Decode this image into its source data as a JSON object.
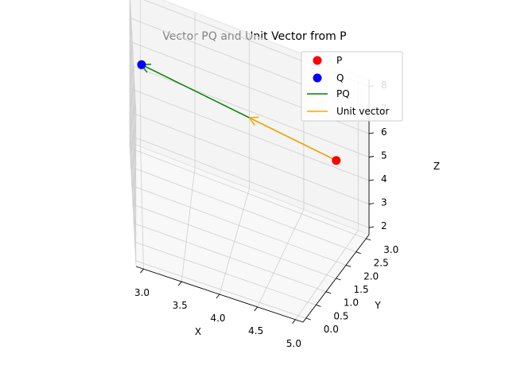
{
  "chart_data": {
    "type": "scatter",
    "projection": "3d",
    "title": "Vector PQ and Unit Vector from P",
    "xlabel": "X",
    "ylabel": "Y",
    "zlabel": "Z",
    "x_ticks": [
      "3.0",
      "3.5",
      "4.0",
      "4.5",
      "5.0"
    ],
    "y_ticks": [
      "0.0",
      "0.5",
      "1.0",
      "1.5",
      "2.0",
      "2.5",
      "3.0"
    ],
    "z_ticks": [
      "2",
      "3",
      "4",
      "5",
      "6",
      "7",
      "8"
    ],
    "xlim": [
      2.9,
      5.1
    ],
    "ylim": [
      -0.15,
      3.15
    ],
    "zlim": [
      1.7,
      8.3
    ],
    "grid": true,
    "legend_position": "top-right",
    "points": [
      {
        "name": "P",
        "x": 5,
        "y": 2,
        "z": 6,
        "color": "#ff0000"
      },
      {
        "name": "Q",
        "x": 3,
        "y": 2,
        "z": 7,
        "color": "#0000ff"
      }
    ],
    "vectors": [
      {
        "name": "PQ",
        "from": [
          5,
          2,
          6
        ],
        "to": [
          3,
          2,
          7
        ],
        "color": "#008000"
      },
      {
        "name": "Unit vector",
        "from": [
          5,
          2,
          6
        ],
        "to": [
          4.106,
          2,
          6.447
        ],
        "color": "#ffa500"
      }
    ],
    "legend": [
      "P",
      "Q",
      "PQ",
      "Unit vector"
    ]
  }
}
